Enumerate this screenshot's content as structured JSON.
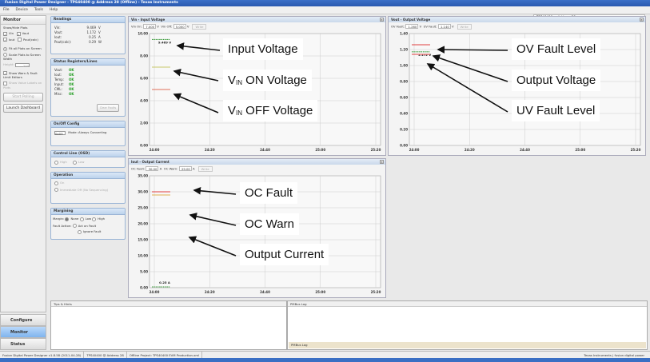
{
  "window": {
    "title": "Fusion Digital Power Designer - TPS40400 @ Address 28 (Offline) - Texas Instruments",
    "device": "TPS40400 @ Address 28"
  },
  "menu": [
    "File",
    "Device",
    "Tools",
    "Help"
  ],
  "left": {
    "title": "Monitor",
    "show_hide": "Show/Hide Plots",
    "plots": [
      {
        "label": "Vin",
        "checked": true
      },
      {
        "label": "Vout",
        "checked": true
      },
      {
        "label": "Iout",
        "checked": true
      },
      {
        "label": "Pout(calc)",
        "checked": false
      }
    ],
    "fit": "Fit all Plots on Screen",
    "scale": "Scale Plots to Screen Width",
    "height_label": "Height:",
    "height_value": "200",
    "show_warn": "Show Warn & Fault Limit Editors",
    "show_value": "Show Value Labels on Plots",
    "start_polling": "Start Polling",
    "launch_dashboard": "Launch Dashboard"
  },
  "nav": [
    {
      "label": "Configure",
      "active": false
    },
    {
      "label": "Monitor",
      "active": true
    },
    {
      "label": "Status",
      "active": false
    }
  ],
  "readings": {
    "title": "Readings",
    "rows": [
      {
        "k": "Vin:",
        "v": "9.469",
        "u": "V"
      },
      {
        "k": "Vout:",
        "v": "1.172",
        "u": "V"
      },
      {
        "k": "Iout:",
        "v": "0.25",
        "u": "A"
      },
      {
        "k": "Pout(calc):",
        "v": "0.29",
        "u": "W"
      }
    ]
  },
  "status": {
    "title": "Status Registers/Lines",
    "rows": [
      {
        "k": "Vout:",
        "v": "OK"
      },
      {
        "k": "Iout:",
        "v": "OK"
      },
      {
        "k": "Temp:",
        "v": "OK"
      },
      {
        "k": "Input:",
        "v": "OK"
      },
      {
        "k": "CML:",
        "v": "OK"
      },
      {
        "k": "Misc:",
        "v": "OK"
      }
    ],
    "clear": "Clear Faults"
  },
  "onoff": {
    "title": "On/Off Config",
    "value": "0x03",
    "mode": "Mode: Always Converting"
  },
  "control": {
    "title": "Control Line (OSD)",
    "high": "High",
    "low": "Low"
  },
  "operation": {
    "title": "Operation",
    "on": "On",
    "off": "Immediate Off (No Sequencing)"
  },
  "margining": {
    "title": "Margining",
    "margin": "Margin:",
    "none": "None",
    "low": "Low",
    "high": "High",
    "fault": "Fault Action:",
    "act": "Act on Fault",
    "ignore": "Ignore Fault"
  },
  "charts": [
    {
      "title": "Vin - Input Voltage",
      "f1": "Vin On:",
      "v1": "7.000",
      "u1": "V",
      "f2": "Vin Off:",
      "v2": "5.000",
      "u2": "V",
      "write": "Write",
      "ylim": [
        0,
        10
      ],
      "yticks": [
        "0.00",
        "2.00",
        "4.00",
        "6.00",
        "8.00",
        "10.00"
      ],
      "xticks": [
        "24:00",
        "24:20",
        "24:40",
        "25:00",
        "25:20"
      ],
      "lines": [
        {
          "y": 9.469,
          "color": "#3a9a3a",
          "dash": true,
          "label": "9.469 V"
        },
        {
          "y": 7.0,
          "color": "#c8c86a"
        },
        {
          "y": 5.0,
          "color": "#e0705a"
        }
      ]
    },
    {
      "title": "Vout - Output Voltage",
      "f1": "OV Fault:",
      "v1": "1.260",
      "u1": "V",
      "f2": "UV Fault:",
      "v2": "1.140",
      "u2": "V",
      "write": "Write",
      "ylim": [
        0,
        1.4
      ],
      "yticks": [
        "0.00",
        "0.20",
        "0.40",
        "0.60",
        "0.80",
        "1.00",
        "1.20",
        "1.40"
      ],
      "xticks": [
        "24:00",
        "24:20",
        "24:40",
        "25:00",
        "25:20"
      ],
      "lines": [
        {
          "y": 1.26,
          "color": "#e04040"
        },
        {
          "y": 1.172,
          "color": "#3a9a3a",
          "dash": true,
          "label": "1.172 V"
        },
        {
          "y": 1.14,
          "color": "#e04040"
        }
      ]
    },
    {
      "title": "Iout - Output Current",
      "f1": "OC Fault:",
      "v1": "30.00",
      "u1": "A",
      "f2": "OC Warn:",
      "v2": "29.00",
      "u2": "A",
      "write": "Write",
      "ylim": [
        0,
        35
      ],
      "yticks": [
        "0.00",
        "5.00",
        "10.00",
        "15.00",
        "20.00",
        "25.00",
        "30.00",
        "35.00"
      ],
      "xticks": [
        "24:00",
        "24:20",
        "24:40",
        "25:00",
        "25:20"
      ],
      "lines": [
        {
          "y": 30,
          "color": "#e04040"
        },
        {
          "y": 29,
          "color": "#e0b050"
        },
        {
          "y": 0.25,
          "color": "#3a9a3a",
          "dash": true,
          "label": "0.25 A"
        }
      ]
    }
  ],
  "notes": [
    {
      "pre": "Input Voltage",
      "sub": "",
      "post": ""
    },
    {
      "pre": "V",
      "sub": "IN",
      "post": " ON Voltage"
    },
    {
      "pre": "V",
      "sub": "IN",
      "post": " OFF Voltage"
    },
    {
      "pre": "OV Fault Level",
      "sub": "",
      "post": ""
    },
    {
      "pre": "Output Voltage",
      "sub": "",
      "post": ""
    },
    {
      "pre": "UV Fault Level",
      "sub": "",
      "post": ""
    },
    {
      "pre": "OC Fault",
      "sub": "",
      "post": ""
    },
    {
      "pre": "OC Warn",
      "sub": "",
      "post": ""
    },
    {
      "pre": "Output Current",
      "sub": "",
      "post": ""
    }
  ],
  "bottom": {
    "tips": "Tips & Hints",
    "log": "PMBus Log",
    "log_tab": "PMBus Log"
  },
  "statusbar": {
    "version": "Fusion Digital Power Designer v1.8.58 (2011-04-28)",
    "device": "TPS40400 @ Address 28",
    "project": "Offline Project: TPS40400 EVM Production.xml",
    "brand": "Texas Instruments | fusion digital power"
  }
}
